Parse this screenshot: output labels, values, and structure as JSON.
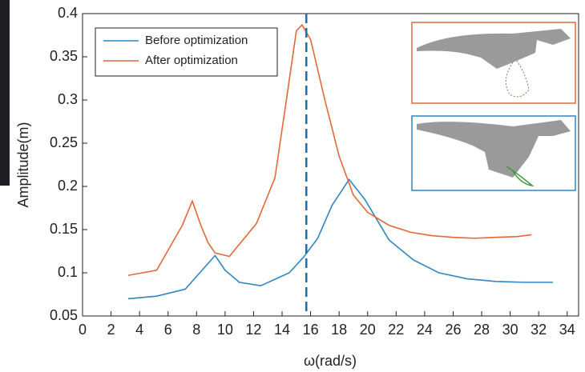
{
  "chart_data": {
    "type": "line",
    "x_label": "ω(rad/s)",
    "y_label": "Amplitude(m)",
    "xlim": [
      0,
      34.8
    ],
    "ylim": [
      0.05,
      0.4
    ],
    "xticks": [
      0,
      2,
      4,
      6,
      8,
      10,
      12,
      14,
      16,
      18,
      20,
      22,
      24,
      26,
      28,
      30,
      32,
      34
    ],
    "yticks": [
      0.05,
      0.1,
      0.15,
      0.2,
      0.25,
      0.3,
      0.35,
      0.4
    ],
    "grid": false,
    "legend": "upper left",
    "ref_line": 15.7,
    "series": [
      {
        "name": "Before optimization",
        "color": "#2f86c2",
        "x": [
          3.2,
          5.2,
          7.2,
          9.3,
          10,
          11,
          12.5,
          14.5,
          15.5,
          16.5,
          17.5,
          18.7,
          19.8,
          21.5,
          23.2,
          25,
          27,
          29,
          31,
          33
        ],
        "values": [
          0.07,
          0.073,
          0.081,
          0.12,
          0.103,
          0.089,
          0.085,
          0.1,
          0.118,
          0.14,
          0.178,
          0.208,
          0.185,
          0.138,
          0.115,
          0.1,
          0.093,
          0.09,
          0.089,
          0.089
        ]
      },
      {
        "name": "After optimization",
        "color": "#e2693a",
        "x": [
          3.2,
          5.2,
          7,
          7.7,
          8.3,
          8.8,
          9.3,
          10.3,
          12.2,
          13.5,
          14.3,
          15,
          15.4,
          16,
          17,
          18,
          19,
          20,
          21.5,
          23,
          24.5,
          26,
          27.5,
          29,
          30.5,
          31.5
        ],
        "values": [
          0.097,
          0.103,
          0.155,
          0.183,
          0.155,
          0.135,
          0.123,
          0.119,
          0.157,
          0.21,
          0.3,
          0.38,
          0.387,
          0.37,
          0.3,
          0.235,
          0.19,
          0.17,
          0.155,
          0.147,
          0.143,
          0.141,
          0.14,
          0.141,
          0.142,
          0.144
        ]
      }
    ]
  }
}
